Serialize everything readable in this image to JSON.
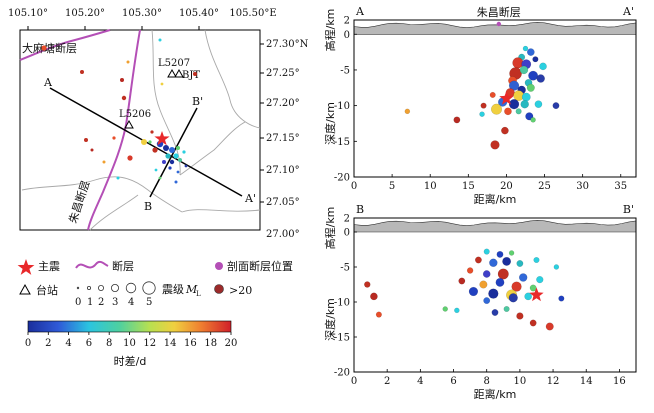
{
  "colors": {
    "fault": "#b44fb6",
    "mainshock": "#e8282a",
    "profile_line": "#000000",
    "topo_fill": "#b8b8b8",
    "gray_old": "#9c2a2a"
  },
  "map": {
    "lon_ticks": [
      "105.10°",
      "105.20°",
      "105.30°",
      "105.40°",
      "105.50°E"
    ],
    "lat_ticks": [
      "27.30°N",
      "27.25°",
      "27.20°",
      "27.15°",
      "27.10°",
      "27.05°",
      "27.00°"
    ],
    "fault_names": [
      "大麻塘断层",
      "朱昌断层"
    ],
    "stations": [
      "L5207",
      "BJT",
      "L5206"
    ],
    "profile_ends": {
      "A": "A",
      "A_prime": "A'",
      "B": "B",
      "B_prime": "B'"
    }
  },
  "legend": {
    "mainshock": "主震",
    "fault": "断层",
    "profile_fault": "剖面断层位置",
    "station": "台站",
    "magnitude_label": "震级",
    "magnitude_sub": "L",
    "magnitude_prefix": "M",
    "magnitude_values": [
      "0",
      "1",
      "2",
      "3",
      "4",
      "5"
    ],
    "old_events": ">20",
    "colorbar_ticks": [
      "0",
      "2",
      "4",
      "6",
      "8",
      "10",
      "12",
      "14",
      "16",
      "18",
      "20"
    ],
    "colorbar_label": "时差/d"
  },
  "chart_data": [
    {
      "type": "scatter",
      "title": "A — A'",
      "end_left": "A",
      "end_right": "A'",
      "fault_name": "朱昌断层",
      "xlabel": "距离/km",
      "ylabel_top": "高程/km",
      "ylabel_bottom": "深度/km",
      "x_ticks": [
        "0",
        "5",
        "10",
        "15",
        "20",
        "25",
        "30",
        "35"
      ],
      "y_ticks": [
        "2",
        "0",
        "-5",
        "-10",
        "-15",
        "-20"
      ],
      "xlim": [
        0,
        37
      ],
      "ylim": [
        -20,
        2
      ],
      "mainshock": {
        "x": 20.0,
        "depth": -9.0
      },
      "fault_x": 19.0,
      "points": [
        {
          "x": 22.5,
          "y": -2.0,
          "m": 0.5,
          "c": "#2bd0e0"
        },
        {
          "x": 23.2,
          "y": -2.5,
          "m": 1.0,
          "c": "#3068d8"
        },
        {
          "x": 22.0,
          "y": -3.2,
          "m": 0.8,
          "c": "#28b8c0"
        },
        {
          "x": 23.8,
          "y": -3.5,
          "m": 0.6,
          "c": "#1a2e9c"
        },
        {
          "x": 21.5,
          "y": -4.0,
          "m": 1.8,
          "c": "#d83a2a"
        },
        {
          "x": 22.6,
          "y": -4.2,
          "m": 1.5,
          "c": "#3f3fc8"
        },
        {
          "x": 24.8,
          "y": -4.5,
          "m": 1.0,
          "c": "#2bd0e0"
        },
        {
          "x": 21.2,
          "y": -5.5,
          "m": 2.2,
          "c": "#c03022"
        },
        {
          "x": 22.3,
          "y": -5.0,
          "m": 1.2,
          "c": "#4ec8a0"
        },
        {
          "x": 23.5,
          "y": -5.8,
          "m": 1.5,
          "c": "#2040c0"
        },
        {
          "x": 20.8,
          "y": -6.5,
          "m": 1.3,
          "c": "#e84e2a"
        },
        {
          "x": 22.9,
          "y": -6.8,
          "m": 1.0,
          "c": "#28b8c0"
        },
        {
          "x": 24.5,
          "y": -6.2,
          "m": 1.2,
          "c": "#283ca8"
        },
        {
          "x": 21.0,
          "y": -7.2,
          "m": 1.6,
          "c": "#3060d0"
        },
        {
          "x": 22.0,
          "y": -7.8,
          "m": 1.2,
          "c": "#1a2e9c"
        },
        {
          "x": 23.2,
          "y": -7.5,
          "m": 1.1,
          "c": "#60d070"
        },
        {
          "x": 20.5,
          "y": -8.2,
          "m": 1.4,
          "c": "#d83a2a"
        },
        {
          "x": 21.6,
          "y": -8.6,
          "m": 1.7,
          "c": "#f0d040"
        },
        {
          "x": 22.6,
          "y": -8.8,
          "m": 1.3,
          "c": "#2bd0e0"
        },
        {
          "x": 18.2,
          "y": -8.5,
          "m": 0.6,
          "c": "#e84e2a"
        },
        {
          "x": 19.5,
          "y": -9.5,
          "m": 1.4,
          "c": "#3068d8"
        },
        {
          "x": 21.0,
          "y": -9.8,
          "m": 1.6,
          "c": "#1a2e9c"
        },
        {
          "x": 22.4,
          "y": -9.8,
          "m": 1.2,
          "c": "#28b8c0"
        },
        {
          "x": 24.2,
          "y": -9.8,
          "m": 1.0,
          "c": "#2bd0e0"
        },
        {
          "x": 18.7,
          "y": -10.5,
          "m": 1.8,
          "c": "#f0d040"
        },
        {
          "x": 20.2,
          "y": -10.8,
          "m": 1.0,
          "c": "#e84e2a"
        },
        {
          "x": 21.6,
          "y": -10.8,
          "m": 0.6,
          "c": "#4ec8a0"
        },
        {
          "x": 23.0,
          "y": -11.5,
          "m": 1.1,
          "c": "#2040c0"
        },
        {
          "x": 26.5,
          "y": -10.0,
          "m": 0.8,
          "c": "#283ca8"
        },
        {
          "x": 17.0,
          "y": -10.0,
          "m": 0.6,
          "c": "#c03022"
        },
        {
          "x": 16.8,
          "y": -11.2,
          "m": 0.5,
          "c": "#2bd0e0"
        },
        {
          "x": 7.0,
          "y": -10.8,
          "m": 0.5,
          "c": "#f0a030"
        },
        {
          "x": 13.5,
          "y": -12.0,
          "m": 0.8,
          "c": "#b82a22"
        },
        {
          "x": 19.8,
          "y": -13.5,
          "m": 1.0,
          "c": "#c03022"
        },
        {
          "x": 18.5,
          "y": -15.5,
          "m": 1.4,
          "c": "#c03022"
        },
        {
          "x": 23.5,
          "y": -12.0,
          "m": 0.5,
          "c": "#60d070"
        }
      ]
    },
    {
      "type": "scatter",
      "title": "B — B'",
      "end_left": "B",
      "end_right": "B'",
      "xlabel": "距离/km",
      "ylabel_top": "高程/km",
      "ylabel_bottom": "深度/km",
      "x_ticks": [
        "0",
        "2",
        "4",
        "6",
        "8",
        "10",
        "12",
        "14",
        "16"
      ],
      "y_ticks": [
        "2",
        "0",
        "-5",
        "-10",
        "-15",
        "-20"
      ],
      "xlim": [
        0,
        17
      ],
      "ylim": [
        -20,
        2
      ],
      "mainshock": {
        "x": 11.0,
        "depth": -9.0
      },
      "points": [
        {
          "x": 8.0,
          "y": -2.8,
          "m": 0.6,
          "c": "#2bd0e0"
        },
        {
          "x": 8.8,
          "y": -3.2,
          "m": 0.8,
          "c": "#2040c0"
        },
        {
          "x": 9.5,
          "y": -3.0,
          "m": 0.5,
          "c": "#60d070"
        },
        {
          "x": 7.5,
          "y": -4.0,
          "m": 0.8,
          "c": "#c03022"
        },
        {
          "x": 8.4,
          "y": -4.4,
          "m": 1.2,
          "c": "#3068d8"
        },
        {
          "x": 9.2,
          "y": -4.2,
          "m": 1.3,
          "c": "#1a2e9c"
        },
        {
          "x": 10.0,
          "y": -4.5,
          "m": 0.8,
          "c": "#28b8c0"
        },
        {
          "x": 11.0,
          "y": -4.0,
          "m": 0.6,
          "c": "#2bd0e0"
        },
        {
          "x": 12.2,
          "y": -5.0,
          "m": 0.5,
          "c": "#2bd0e0"
        },
        {
          "x": 7.0,
          "y": -5.5,
          "m": 0.7,
          "c": "#e84e2a"
        },
        {
          "x": 8.0,
          "y": -6.0,
          "m": 1.0,
          "c": "#3f3fc8"
        },
        {
          "x": 9.0,
          "y": -6.0,
          "m": 1.8,
          "c": "#c03022"
        },
        {
          "x": 10.2,
          "y": -6.5,
          "m": 1.2,
          "c": "#3068d8"
        },
        {
          "x": 11.2,
          "y": -6.8,
          "m": 0.9,
          "c": "#2bd0e0"
        },
        {
          "x": 6.5,
          "y": -7.0,
          "m": 0.8,
          "c": "#b82a22"
        },
        {
          "x": 7.8,
          "y": -7.5,
          "m": 1.1,
          "c": "#f0a030"
        },
        {
          "x": 8.8,
          "y": -7.2,
          "m": 1.3,
          "c": "#2040c0"
        },
        {
          "x": 9.8,
          "y": -7.8,
          "m": 1.6,
          "c": "#d83a2a"
        },
        {
          "x": 10.8,
          "y": -8.0,
          "m": 0.8,
          "c": "#60d070"
        },
        {
          "x": 7.2,
          "y": -8.5,
          "m": 1.4,
          "c": "#2040c0"
        },
        {
          "x": 8.4,
          "y": -8.8,
          "m": 1.6,
          "c": "#1a2e9c"
        },
        {
          "x": 9.5,
          "y": -9.0,
          "m": 1.8,
          "c": "#f0d040"
        },
        {
          "x": 9.6,
          "y": -9.4,
          "m": 1.4,
          "c": "#283ca8"
        },
        {
          "x": 10.5,
          "y": -9.2,
          "m": 1.0,
          "c": "#2bd0e0"
        },
        {
          "x": 8.0,
          "y": -9.8,
          "m": 0.8,
          "c": "#3068d8"
        },
        {
          "x": 6.2,
          "y": -11.2,
          "m": 0.5,
          "c": "#2bd0e0"
        },
        {
          "x": 8.5,
          "y": -11.5,
          "m": 0.8,
          "c": "#283ca8"
        },
        {
          "x": 9.2,
          "y": -11.0,
          "m": 0.6,
          "c": "#4ec8a0"
        },
        {
          "x": 10.0,
          "y": -12.0,
          "m": 0.9,
          "c": "#c03022"
        },
        {
          "x": 5.5,
          "y": -11.0,
          "m": 0.5,
          "c": "#60d070"
        },
        {
          "x": 0.8,
          "y": -7.5,
          "m": 0.7,
          "c": "#c03022"
        },
        {
          "x": 1.2,
          "y": -9.2,
          "m": 1.0,
          "c": "#b82a22"
        },
        {
          "x": 1.5,
          "y": -11.8,
          "m": 0.6,
          "c": "#e84e2a"
        },
        {
          "x": 10.8,
          "y": -13.0,
          "m": 0.8,
          "c": "#c03022"
        },
        {
          "x": 11.8,
          "y": -13.5,
          "m": 1.1,
          "c": "#d83a2a"
        },
        {
          "x": 12.5,
          "y": -9.5,
          "m": 0.6,
          "c": "#2040c0"
        }
      ]
    }
  ]
}
